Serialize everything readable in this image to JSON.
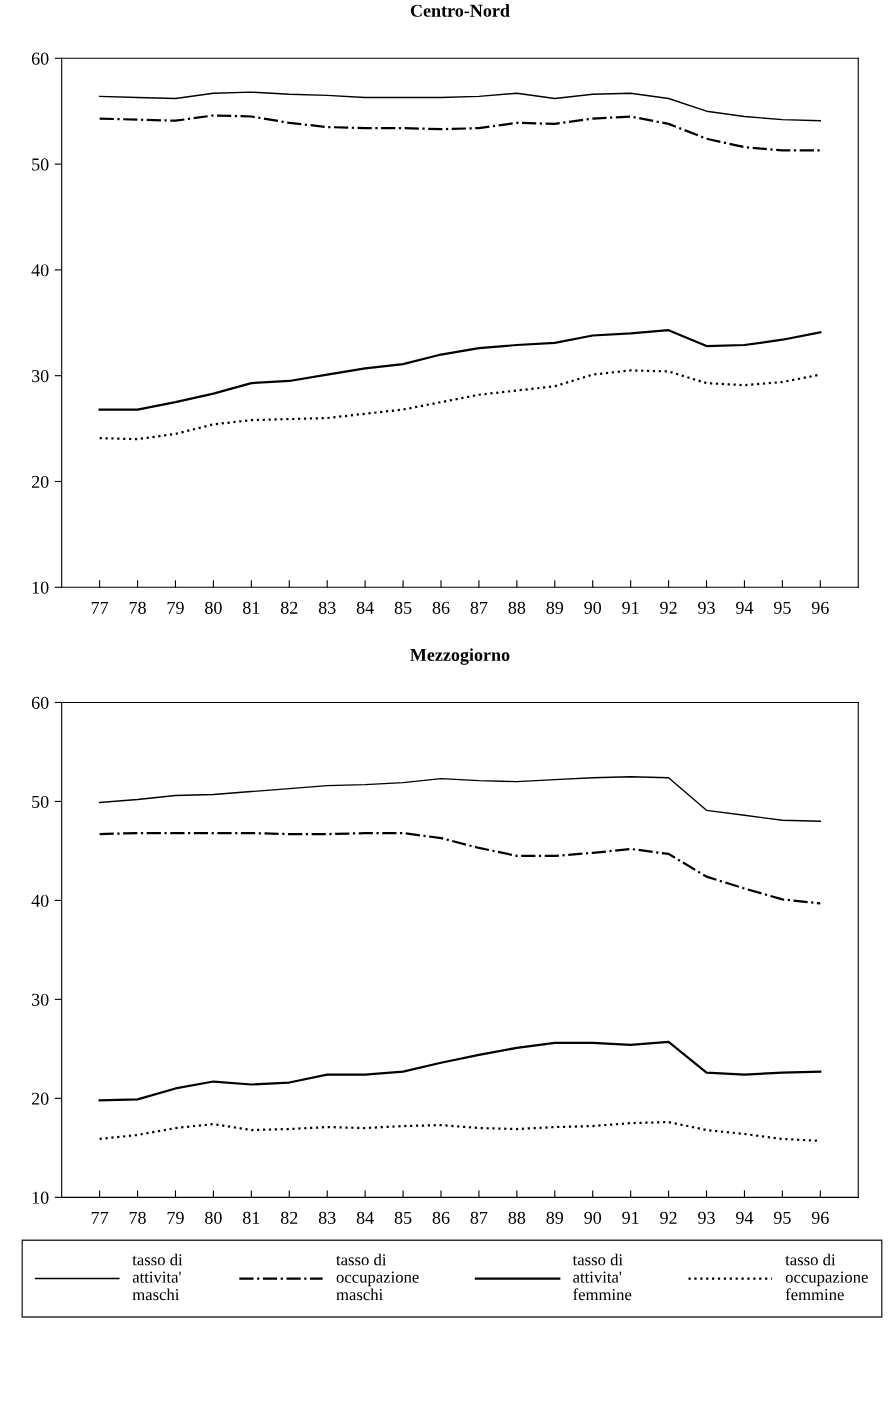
{
  "chart_data": [
    {
      "type": "line",
      "title": "Centro-Nord",
      "categories": [
        "77",
        "78",
        "79",
        "80",
        "81",
        "82",
        "83",
        "84",
        "85",
        "86",
        "87",
        "88",
        "89",
        "90",
        "91",
        "92",
        "93",
        "94",
        "95",
        "96"
      ],
      "ylim": [
        10,
        60
      ],
      "yticks": [
        10,
        20,
        30,
        40,
        50,
        60
      ],
      "grid": false,
      "legend": false,
      "series": [
        {
          "color": "#000000",
          "line_style": "solid",
          "values": [
            56.4,
            56.3,
            56.2,
            56.7,
            56.8,
            56.6,
            56.5,
            56.3,
            56.3,
            56.3,
            56.4,
            56.7,
            56.2,
            56.6,
            56.7,
            56.2,
            55.0,
            54.5,
            54.2,
            54.1
          ]
        },
        {
          "color": "#000000",
          "line_style": "dashdot",
          "values": [
            54.3,
            54.2,
            54.1,
            54.6,
            54.5,
            53.9,
            53.5,
            53.4,
            53.4,
            53.3,
            53.4,
            53.9,
            53.8,
            54.3,
            54.5,
            53.8,
            52.4,
            51.6,
            51.3,
            51.3
          ]
        },
        {
          "color": "#000000",
          "line_style": "solid",
          "values": [
            26.8,
            26.8,
            27.5,
            28.3,
            29.3,
            29.5,
            30.1,
            30.7,
            31.1,
            32.0,
            32.6,
            32.9,
            33.1,
            33.8,
            34.0,
            34.3,
            32.8,
            32.9,
            33.4,
            34.1
          ]
        },
        {
          "color": "#000000",
          "line_style": "dotted",
          "values": [
            24.1,
            24.0,
            24.5,
            25.4,
            25.8,
            25.9,
            26.0,
            26.4,
            26.8,
            27.5,
            28.2,
            28.6,
            29.0,
            30.1,
            30.5,
            30.4,
            29.3,
            29.1,
            29.4,
            30.1
          ]
        }
      ]
    },
    {
      "type": "line",
      "title": "Mezzogiorno",
      "categories": [
        "77",
        "78",
        "79",
        "80",
        "81",
        "82",
        "83",
        "84",
        "85",
        "86",
        "87",
        "88",
        "89",
        "90",
        "91",
        "92",
        "93",
        "94",
        "95",
        "96"
      ],
      "ylim": [
        10,
        60
      ],
      "yticks": [
        10,
        20,
        30,
        40,
        50,
        60
      ],
      "grid": false,
      "legend": "bottom",
      "series": [
        {
          "name": "tasso di\nattivita'\nmaschi",
          "color": "#000000",
          "line_style": "solid",
          "values": [
            49.9,
            50.2,
            50.6,
            50.7,
            51.0,
            51.3,
            51.6,
            51.7,
            51.9,
            52.3,
            52.1,
            52.0,
            52.2,
            52.4,
            52.5,
            52.4,
            49.1,
            48.6,
            48.1,
            48.0
          ]
        },
        {
          "name": "tasso di\noccupazione\nmaschi",
          "color": "#000000",
          "line_style": "dashdot",
          "values": [
            46.7,
            46.8,
            46.8,
            46.8,
            46.8,
            46.7,
            46.7,
            46.8,
            46.8,
            46.3,
            45.3,
            44.5,
            44.5,
            44.8,
            45.2,
            44.7,
            42.4,
            41.2,
            40.1,
            39.7
          ]
        },
        {
          "name": "tasso di\nattivita'\nfemmine",
          "color": "#000000",
          "line_style": "solid",
          "values": [
            19.8,
            19.9,
            21.0,
            21.7,
            21.4,
            21.6,
            22.4,
            22.4,
            22.7,
            23.6,
            24.4,
            25.1,
            25.6,
            25.6,
            25.4,
            25.7,
            22.6,
            22.4,
            22.6,
            22.7
          ]
        },
        {
          "name": "tasso di\noccupazione\nfemmine",
          "color": "#000000",
          "line_style": "dotted",
          "values": [
            15.9,
            16.3,
            17.0,
            17.4,
            16.8,
            16.9,
            17.1,
            17.0,
            17.2,
            17.3,
            17.0,
            16.9,
            17.1,
            17.2,
            17.5,
            17.6,
            16.8,
            16.4,
            15.9,
            15.7
          ]
        }
      ]
    }
  ]
}
